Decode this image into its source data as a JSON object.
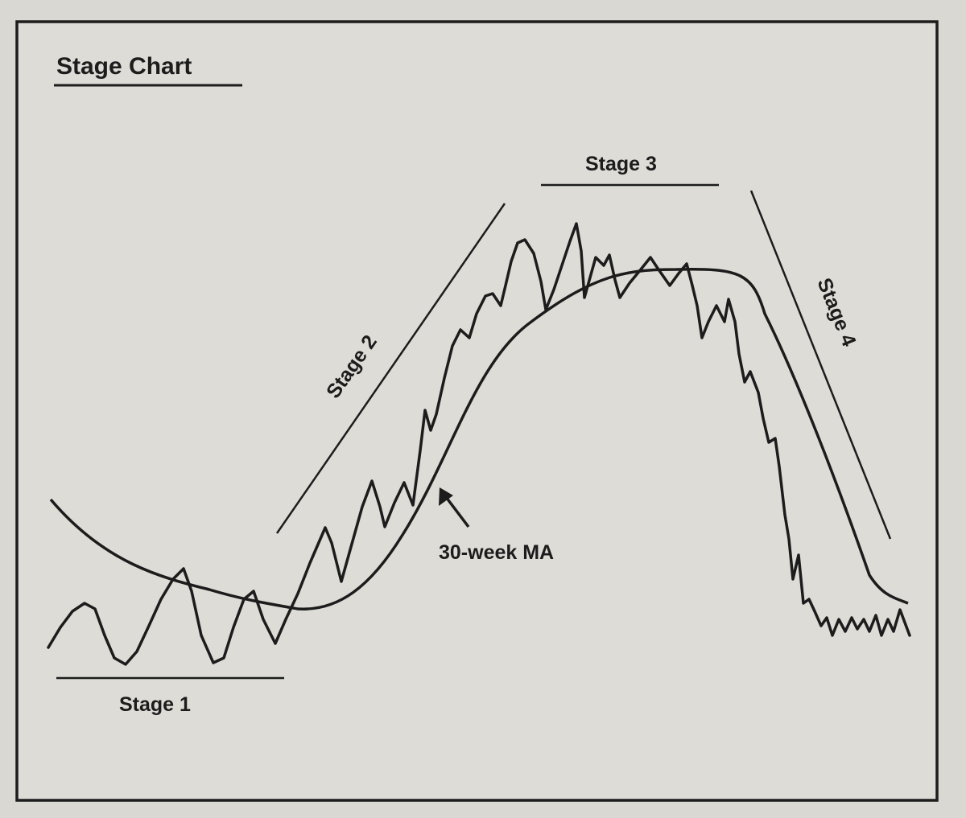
{
  "title": "Stage Chart",
  "callout": {
    "label": "30-week MA"
  },
  "stages": [
    {
      "label": "Stage 1"
    },
    {
      "label": "Stage 2"
    },
    {
      "label": "Stage 3"
    },
    {
      "label": "Stage 4"
    }
  ],
  "colors": {
    "ink": "#1c1c1c",
    "paper": "#dddcd7",
    "background": "#d9d8d3"
  }
}
